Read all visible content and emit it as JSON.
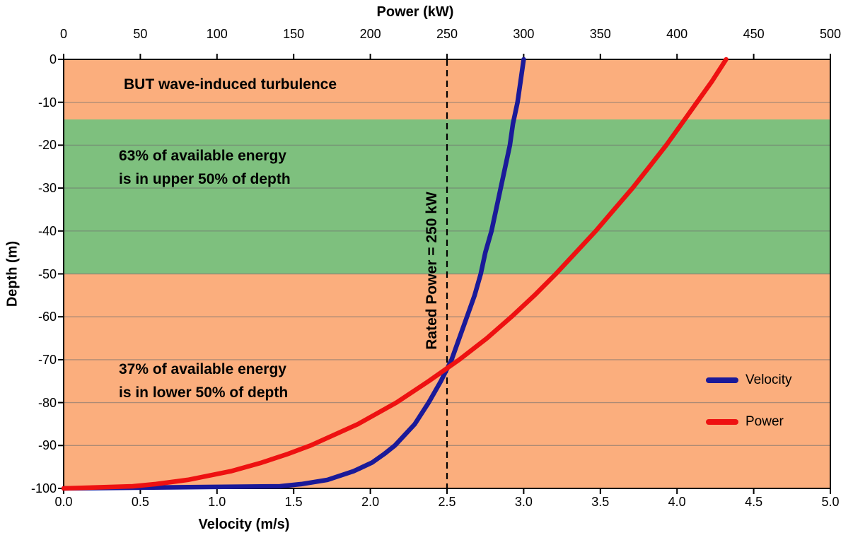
{
  "chart_data": {
    "type": "line",
    "top_axis": {
      "label": "Power (kW)",
      "min": 0,
      "max": 500,
      "tick_step": 50,
      "ticks": [
        "0",
        "50",
        "100",
        "150",
        "200",
        "250",
        "300",
        "350",
        "400",
        "450",
        "500"
      ]
    },
    "bottom_axis": {
      "label": "Velocity (m/s)",
      "min": 0,
      "max": 5,
      "tick_step": 0.5,
      "ticks": [
        "0.0",
        "0.5",
        "1.0",
        "1.5",
        "2.0",
        "2.5",
        "3.0",
        "3.5",
        "4.0",
        "4.5",
        "5.0"
      ]
    },
    "y_axis": {
      "label": "Depth (m)",
      "min": -100,
      "max": 0,
      "tick_step": 10,
      "ticks": [
        "0",
        "-10",
        "-20",
        "-30",
        "-40",
        "-50",
        "-60",
        "-70",
        "-80",
        "-90",
        "-100"
      ]
    },
    "grid": "horizontal",
    "gridline_color": "#6f6f6f",
    "frame_color": "#000000",
    "bands": [
      {
        "from": 0,
        "to": -14,
        "color": "#FBAE7D"
      },
      {
        "from": -14,
        "to": -50,
        "color": "#7EC07E"
      },
      {
        "from": -50,
        "to": -100,
        "color": "#FBAE7D"
      }
    ],
    "reference_line": {
      "label": "Rated Power = 250 kW",
      "velocity": 2.5,
      "power": 250,
      "style": "dashed",
      "color": "#000000"
    },
    "series": [
      {
        "name": "Velocity",
        "axis": "bottom",
        "color": "#1A1A99",
        "depth": [
          -100,
          -99.5,
          -99,
          -98,
          -96,
          -94,
          -92,
          -90,
          -85,
          -80,
          -75,
          -70,
          -65,
          -60,
          -55,
          -50,
          -45,
          -40,
          -35,
          -30,
          -25,
          -20,
          -15,
          -10,
          -5,
          0
        ],
        "values": [
          0,
          1.41,
          1.55,
          1.72,
          1.89,
          2.01,
          2.09,
          2.16,
          2.29,
          2.38,
          2.46,
          2.53,
          2.58,
          2.63,
          2.68,
          2.72,
          2.75,
          2.79,
          2.82,
          2.85,
          2.88,
          2.91,
          2.93,
          2.96,
          2.98,
          3.0
        ]
      },
      {
        "name": "Power",
        "axis": "top",
        "color": "#EE1111",
        "depth": [
          -100,
          -99.5,
          -99,
          -98,
          -96,
          -94,
          -92,
          -90,
          -85,
          -80,
          -75,
          -70,
          -65,
          -60,
          -55,
          -50,
          -45,
          -40,
          -35,
          -30,
          -25,
          -20,
          -15,
          -10,
          -5,
          0
        ],
        "values": [
          0,
          45,
          60,
          81,
          109,
          129,
          146,
          161,
          192,
          217,
          238,
          258,
          276,
          292,
          307,
          321,
          334,
          347,
          359,
          371,
          382,
          393,
          403,
          413,
          423,
          432
        ]
      }
    ],
    "annotations": [
      {
        "text": "BUT wave-induced turbulence"
      },
      {
        "lines": [
          "63% of available energy",
          "is in upper 50% of depth"
        ]
      },
      {
        "lines": [
          "37% of available energy",
          "is in lower 50% of depth"
        ]
      }
    ],
    "legend": {
      "position": "inside-right",
      "entries": [
        {
          "label": "Velocity",
          "color": "#1A1A99"
        },
        {
          "label": "Power",
          "color": "#EE1111"
        }
      ]
    }
  }
}
